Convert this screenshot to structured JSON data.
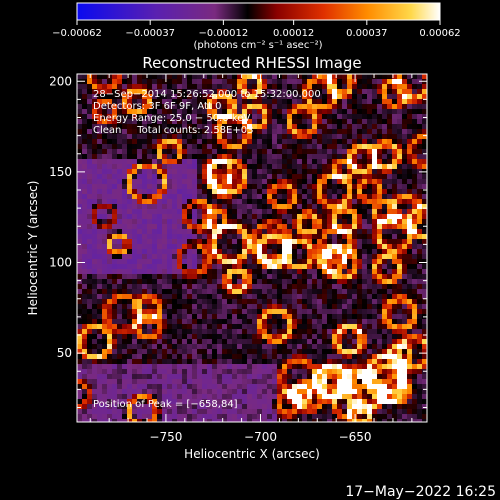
{
  "chart_data": {
    "type": "heatmap",
    "title": "Reconstructed RHESSI Image",
    "xlabel": "Heliocentric X (arcsec)",
    "ylabel": "Heliocentric Y (arcsec)",
    "xlim": [
      -797,
      -612
    ],
    "ylim": [
      12,
      204
    ],
    "x_ticks": [
      -750,
      -700,
      -650
    ],
    "y_ticks": [
      50,
      100,
      150,
      200
    ],
    "x_tick_labels": [
      "−750",
      "−700",
      "−650"
    ],
    "y_tick_labels": [
      "50",
      "100",
      "150",
      "200"
    ],
    "colorbar": {
      "range": [
        -0.00062,
        0.00062
      ],
      "ticks": [
        -0.00062,
        -0.00037,
        -0.00012,
        0.00012,
        0.00037,
        0.00062
      ],
      "tick_labels": [
        "−0.00062",
        "−0.00037",
        "−0.00012",
        "0.00012",
        "0.00037",
        "0.00062"
      ],
      "unit_label": "(photons cm⁻² s⁻¹ asec⁻²)",
      "colors": [
        "#0a0af0",
        "#5a20b0",
        "#7a2a80",
        "#000000",
        "#8a0000",
        "#e03000",
        "#ff8c00",
        "#ffd84a",
        "#ffffff"
      ]
    },
    "annotations": [
      "28−Sep−2014 15:26:52.000 to 15:32:00.000",
      "Detectors: 3F 6F 9F, Att 0",
      "Energy Range: 25.0 − 50.0 keV",
      "Clean     Total counts: 2.58E+03"
    ],
    "peak_label": "Position of Peak = [−658,84]",
    "peak_position": [
      -658,
      84
    ],
    "grid": false
  },
  "timestamp": "17−May−2022 16:25"
}
